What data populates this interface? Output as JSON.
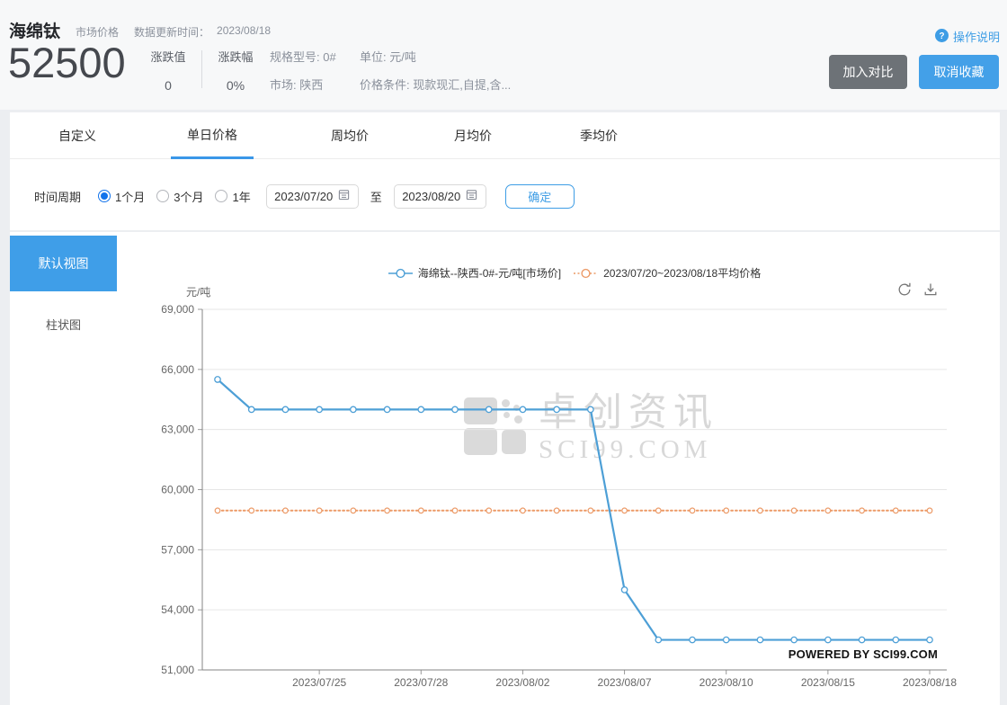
{
  "header": {
    "title": "海绵钛",
    "subtitle": "市场价格",
    "update_label": "数据更新时间：",
    "update_date": "2023/08/18",
    "price": "52500",
    "change_value_label": "涨跌值",
    "change_value": "0",
    "change_pct_label": "涨跌幅",
    "change_pct": "0%",
    "spec_label": "规格型号: 0#",
    "market_label": "市场: 陕西",
    "unit_label": "单位: 元/吨",
    "condition_label": "价格条件: 现款现汇,自提,含...",
    "help_label": "操作说明",
    "compare_button": "加入对比",
    "favorite_button": "取消收藏"
  },
  "tabs": [
    {
      "label": "自定义",
      "active": false
    },
    {
      "label": "单日价格",
      "active": true
    },
    {
      "label": "周均价",
      "active": false
    },
    {
      "label": "月均价",
      "active": false
    },
    {
      "label": "季均价",
      "active": false
    }
  ],
  "period": {
    "label": "时间周期",
    "options": [
      {
        "label": "1个月",
        "selected": true
      },
      {
        "label": "3个月",
        "selected": false
      },
      {
        "label": "1年",
        "selected": false
      }
    ],
    "start_date": "2023/07/20",
    "to_label": "至",
    "end_date": "2023/08/20",
    "confirm_button": "确定"
  },
  "sidebar": {
    "default_view": "默认视图",
    "bar_chart": "柱状图"
  },
  "chart": {
    "watermark_cn": "卓创资讯",
    "watermark_en": "SCI99.COM",
    "powered_by": "POWERED BY SCI99.COM"
  },
  "icons": {
    "help": "question-circle-icon",
    "calendar": "calendar-icon",
    "refresh": "refresh-icon",
    "download": "download-icon"
  },
  "colors": {
    "accent_blue": "#3E9DE5",
    "radio_blue": "#1273eb",
    "gray_button": "#6d7277",
    "line_blue": "#4d9fd6",
    "avg_orange": "#ec9a67"
  },
  "chart_data": {
    "type": "line",
    "title": "",
    "xlabel": "",
    "ylabel": "元/吨",
    "ylim": [
      51000,
      69000
    ],
    "yticks": [
      51000,
      54000,
      57000,
      60000,
      63000,
      66000,
      69000
    ],
    "xticks": [
      "2023/07/25",
      "2023/07/28",
      "2023/08/02",
      "2023/08/07",
      "2023/08/10",
      "2023/08/15",
      "2023/08/18"
    ],
    "grid": true,
    "legend_position": "top",
    "series": [
      {
        "name": "海绵钛--陕西-0#-元/吨[市场价]",
        "color": "#4d9fd6",
        "style": "solid",
        "x": [
          "2023/07/20",
          "2023/07/21",
          "2023/07/24",
          "2023/07/25",
          "2023/07/26",
          "2023/07/27",
          "2023/07/28",
          "2023/07/31",
          "2023/08/01",
          "2023/08/02",
          "2023/08/03",
          "2023/08/04",
          "2023/08/07",
          "2023/08/08",
          "2023/08/09",
          "2023/08/10",
          "2023/08/11",
          "2023/08/14",
          "2023/08/15",
          "2023/08/16",
          "2023/08/17",
          "2023/08/18"
        ],
        "values": [
          65500,
          64000,
          64000,
          64000,
          64000,
          64000,
          64000,
          64000,
          64000,
          64000,
          64000,
          64000,
          55000,
          52500,
          52500,
          52500,
          52500,
          52500,
          52500,
          52500,
          52500,
          52500
        ]
      },
      {
        "name": "2023/07/20~2023/08/18平均价格",
        "color": "#ec9a67",
        "style": "dotted",
        "average_value": 58954.5
      }
    ]
  }
}
